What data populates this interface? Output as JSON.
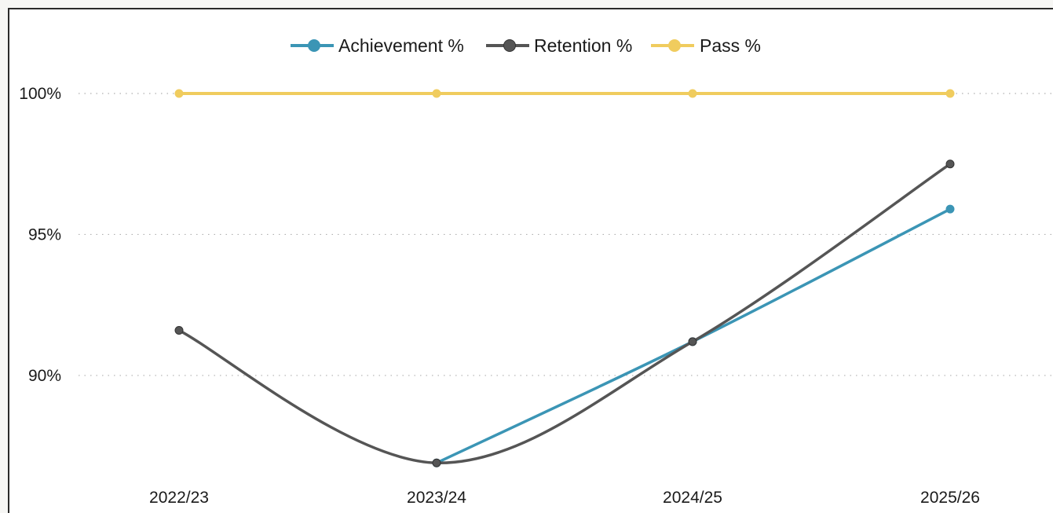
{
  "chart_data": {
    "type": "line",
    "title": "",
    "xlabel": "",
    "ylabel": "",
    "categories": [
      "2022/23",
      "2023/24",
      "2024/25",
      "2025/26"
    ],
    "ylim": [
      86.6,
      102.2
    ],
    "yticks": [
      90,
      95,
      100
    ],
    "ytick_labels": [
      "90%",
      "95%",
      "100%"
    ],
    "grid": "horizontal-dotted",
    "legend_position": "top-center",
    "smooth": true,
    "series": [
      {
        "name": "Achievement %",
        "color": "#3b95b5",
        "values": [
          null,
          86.9,
          91.2,
          95.9
        ]
      },
      {
        "name": "Retention %",
        "color": "#555555",
        "values": [
          91.6,
          86.9,
          91.2,
          97.5
        ]
      },
      {
        "name": "Pass %",
        "color": "#f0cc5e",
        "values": [
          100,
          100,
          100,
          100
        ]
      }
    ]
  }
}
